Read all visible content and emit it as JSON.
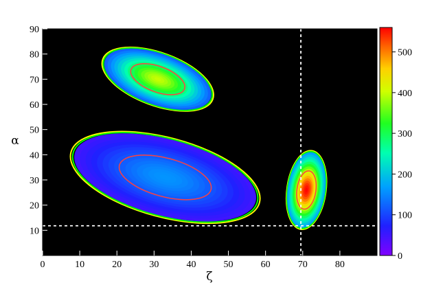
{
  "chart_data": {
    "type": "heatmap",
    "title": "",
    "xlabel": "ζ",
    "ylabel": "α",
    "xlim": [
      0,
      90
    ],
    "ylim": [
      0,
      90
    ],
    "x_ticks": [
      0,
      10,
      20,
      30,
      40,
      50,
      60,
      70,
      80
    ],
    "y_ticks": [
      10,
      20,
      30,
      40,
      50,
      60,
      70,
      80,
      90
    ],
    "grid": false,
    "background_color": "#000000",
    "colorbar": {
      "range": [
        0,
        560
      ],
      "ticks": [
        0,
        100,
        200,
        300,
        400,
        500
      ],
      "colors": [
        "#8000ff",
        "#2020ff",
        "#00a0ff",
        "#00ffb0",
        "#20ff20",
        "#d0ff00",
        "#ffd000",
        "#ff6000",
        "#ff0000"
      ]
    },
    "contour_levels": {
      "outer_colors": [
        "#ffff00",
        "#00ff00"
      ],
      "inner_color": "#ff4040"
    },
    "reference_lines": [
      {
        "orientation": "vertical",
        "x": 69.5,
        "style": "dashed",
        "color": "#ffffff"
      },
      {
        "orientation": "horizontal",
        "y": 11.8,
        "style": "dashed",
        "color": "#ffffff"
      }
    ],
    "clusters": [
      {
        "center_zeta": 31,
        "center_alpha": 70,
        "peak_count": 400,
        "spread_zeta": 9,
        "spread_alpha": 6
      },
      {
        "center_zeta": 33,
        "center_alpha": 31,
        "peak_count": 160,
        "spread_zeta": 15,
        "spread_alpha": 9
      },
      {
        "center_zeta": 71,
        "center_alpha": 26,
        "peak_count": 560,
        "spread_zeta": 3,
        "spread_alpha": 9
      }
    ]
  }
}
